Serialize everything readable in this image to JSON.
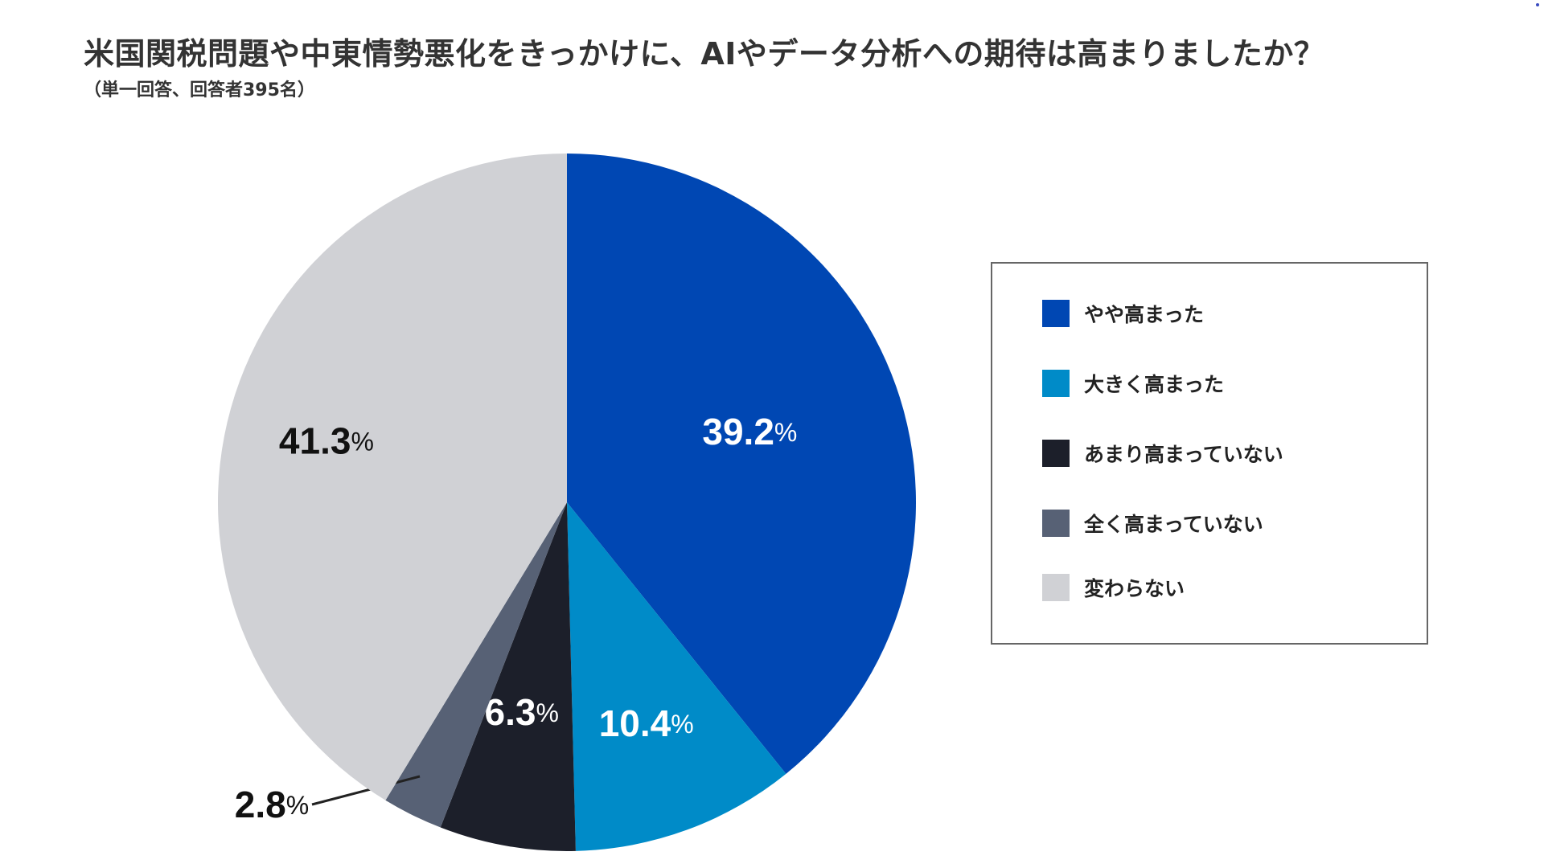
{
  "title": "米国関税問題や中東情勢悪化をきっかけに、AIやデータ分析への期待は高まりましたか？",
  "subtitle": "（単一回答、回答者395名）",
  "percent_suffix": "%",
  "chart_data": {
    "type": "pie",
    "title": "米国関税問題や中東情勢悪化をきっかけに、AIやデータ分析への期待は高まりましたか？",
    "subtitle": "（単一回答、回答者395名）",
    "start_angle": "12 o'clock",
    "direction": "clockwise",
    "legend_position": "right",
    "slices": [
      {
        "label": "やや高まった",
        "value": 39.2,
        "value_label": "39.2",
        "color": "#0047b3",
        "label_color": "#ffffff"
      },
      {
        "label": "大きく高まった",
        "value": 10.4,
        "value_label": "10.4",
        "color": "#008bc8",
        "label_color": "#ffffff"
      },
      {
        "label": "あまり高まっていない",
        "value": 6.3,
        "value_label": "6.3",
        "color": "#1c1f2a",
        "label_color": "#ffffff"
      },
      {
        "label": "全く高まっていない",
        "value": 2.8,
        "value_label": "2.8",
        "color": "#576175",
        "label_color": "#111111"
      },
      {
        "label": "変わらない",
        "value": 41.3,
        "value_label": "41.3",
        "color": "#d0d1d5",
        "label_color": "#111111"
      }
    ]
  },
  "legend": {
    "items": [
      {
        "label": "やや高まった",
        "color": "#0047b3"
      },
      {
        "label": "大きく高まった",
        "color": "#008bc8"
      },
      {
        "label": "あまり高まっていない",
        "color": "#1c1f2a"
      },
      {
        "label": "全く高まっていない",
        "color": "#576175"
      },
      {
        "label": "変わらない",
        "color": "#d0d1d5"
      }
    ]
  }
}
